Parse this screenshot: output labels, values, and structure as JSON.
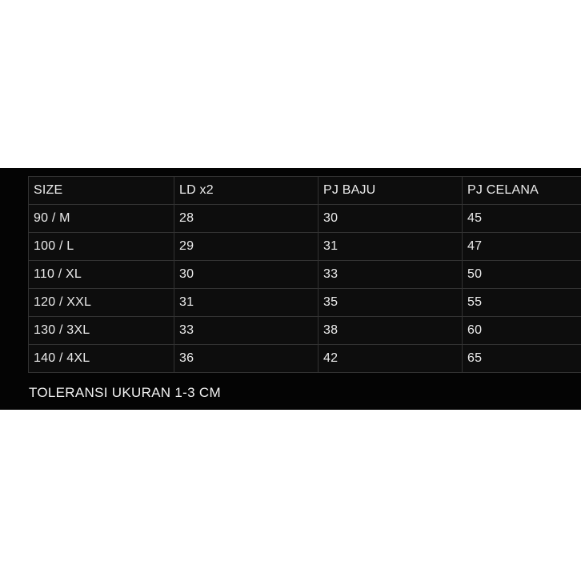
{
  "colors": {
    "page_background": "#ffffff",
    "panel_background": "#040404",
    "cell_background": "#0d0d0d",
    "grid_border": "#323232",
    "text": "#ebebeb"
  },
  "chart_data": {
    "type": "table",
    "title": "",
    "columns": [
      "SIZE",
      "LD x2",
      "PJ BAJU",
      "PJ CELANA"
    ],
    "rows": [
      [
        "90 / M",
        "28",
        "30",
        "45"
      ],
      [
        "100 / L",
        "29",
        "31",
        "47"
      ],
      [
        "110 / XL",
        "30",
        "33",
        "50"
      ],
      [
        "120 / XXL",
        "31",
        "35",
        "55"
      ],
      [
        "130 / 3XL",
        "33",
        "38",
        "60"
      ],
      [
        "140 / 4XL",
        "36",
        "42",
        "65"
      ]
    ],
    "footnote": "TOLERANSI UKURAN 1-3 CM",
    "layout_hints": {
      "grid": "on",
      "right_edge_clipped": true,
      "panel_spans_full_width": true
    }
  }
}
